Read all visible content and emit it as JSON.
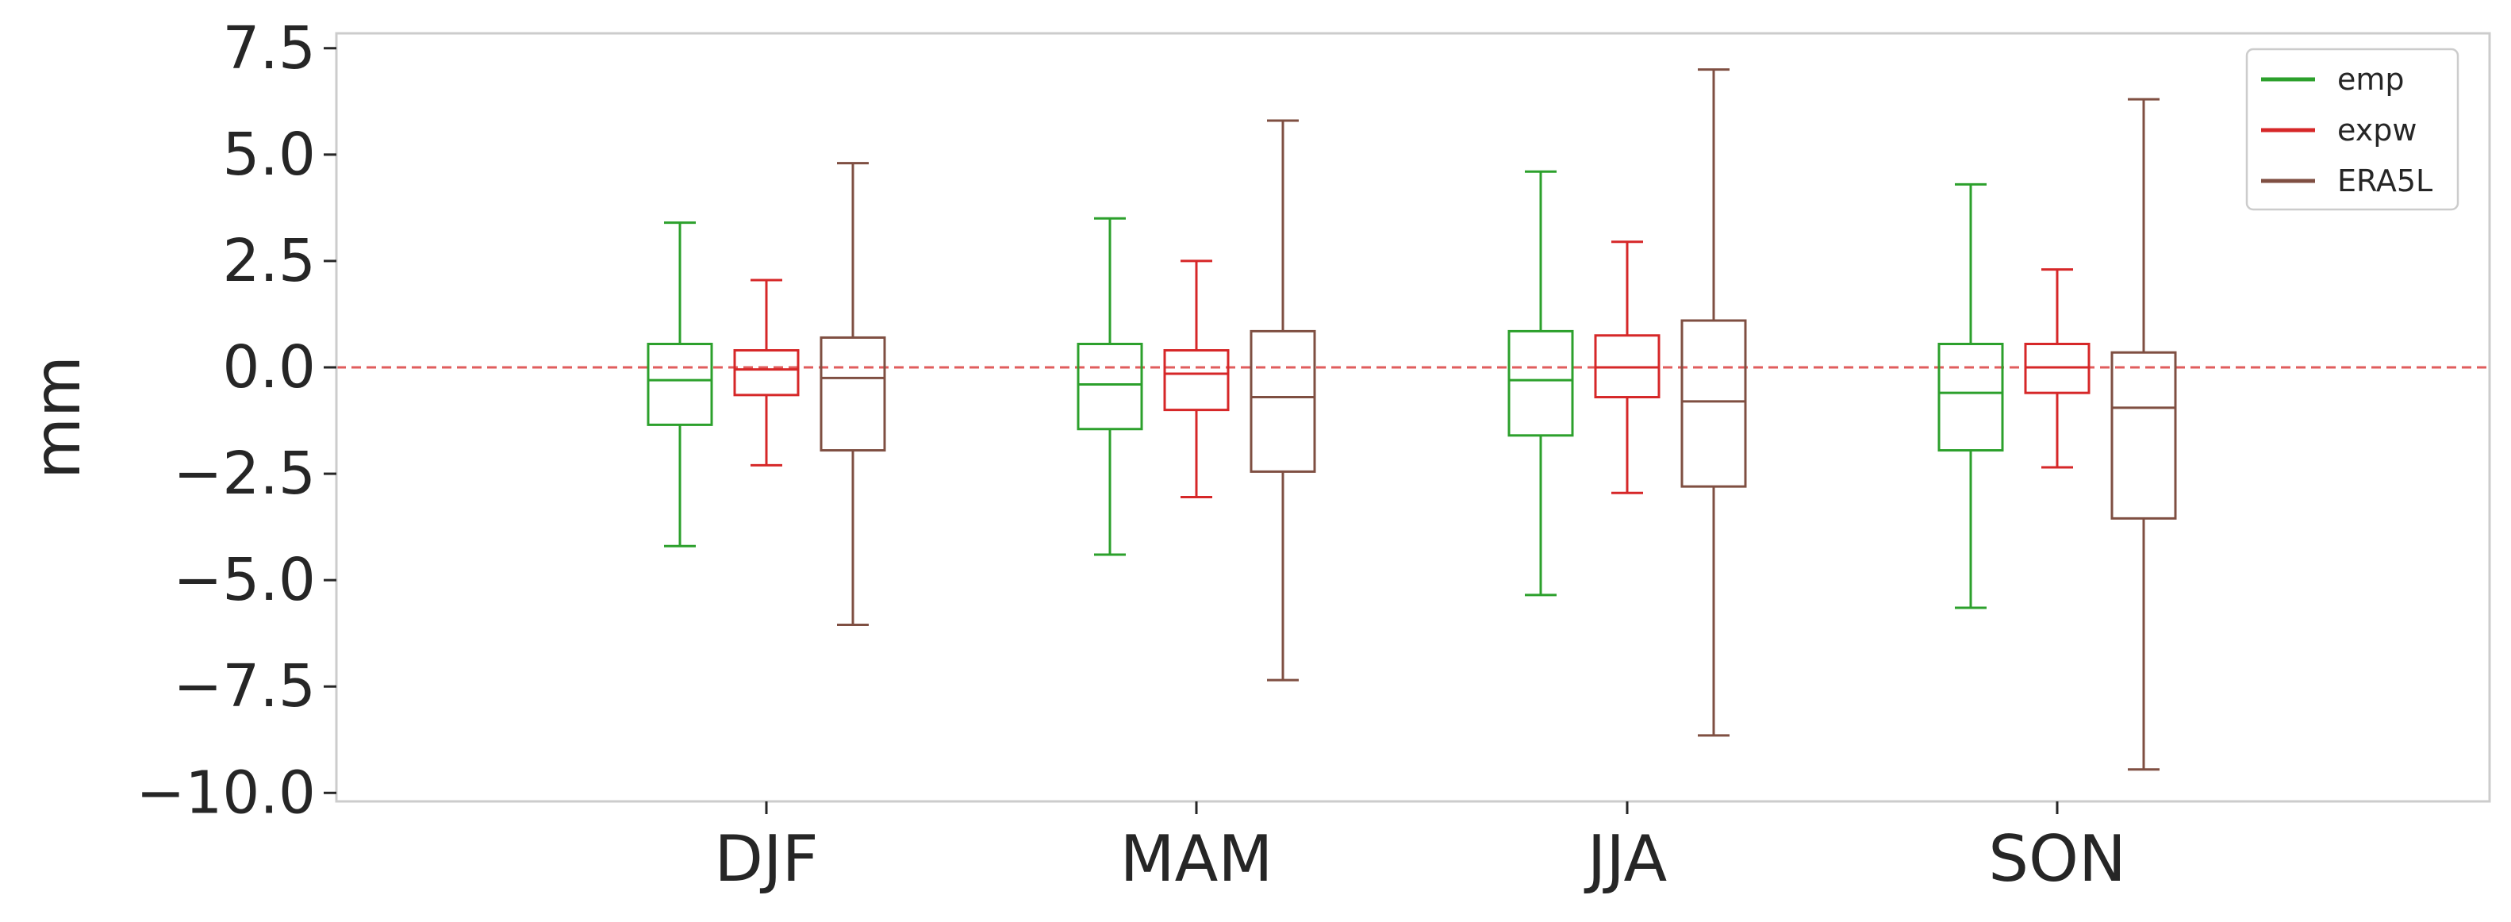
{
  "chart_data": {
    "type": "box",
    "title": "",
    "xlabel": "",
    "ylabel": "mm",
    "ylim": [
      -10.2,
      7.85
    ],
    "yticks": [
      7.5,
      5.0,
      2.5,
      0.0,
      -2.5,
      -5.0,
      -7.5,
      -10.0
    ],
    "ytick_labels": [
      "7.5",
      "5.0",
      "2.5",
      "0.0",
      "−2.5",
      "−5.0",
      "−7.5",
      "−10.0"
    ],
    "categories": [
      "DJF",
      "MAM",
      "JJA",
      "SON"
    ],
    "reference_line": 0.0,
    "legend_position": "top-right",
    "series": [
      {
        "name": "emp",
        "color": "#2ca02c",
        "boxes": [
          {
            "whislo": -4.2,
            "q1": -1.35,
            "med": -0.3,
            "q3": 0.55,
            "whishi": 3.4
          },
          {
            "whislo": -4.4,
            "q1": -1.45,
            "med": -0.4,
            "q3": 0.55,
            "whishi": 3.5
          },
          {
            "whislo": -5.35,
            "q1": -1.6,
            "med": -0.3,
            "q3": 0.85,
            "whishi": 4.6
          },
          {
            "whislo": -5.65,
            "q1": -1.95,
            "med": -0.6,
            "q3": 0.55,
            "whishi": 4.3
          }
        ]
      },
      {
        "name": "expw",
        "color": "#d62728",
        "boxes": [
          {
            "whislo": -2.3,
            "q1": -0.65,
            "med": -0.05,
            "q3": 0.4,
            "whishi": 2.05
          },
          {
            "whislo": -3.05,
            "q1": -1.0,
            "med": -0.15,
            "q3": 0.4,
            "whishi": 2.5
          },
          {
            "whislo": -2.95,
            "q1": -0.7,
            "med": 0.0,
            "q3": 0.75,
            "whishi": 2.95
          },
          {
            "whislo": -2.35,
            "q1": -0.6,
            "med": 0.0,
            "q3": 0.55,
            "whishi": 2.3
          }
        ]
      },
      {
        "name": "ERA5L",
        "color": "#7f4f42",
        "boxes": [
          {
            "whislo": -6.05,
            "q1": -1.95,
            "med": -0.25,
            "q3": 0.7,
            "whishi": 4.8
          },
          {
            "whislo": -7.35,
            "q1": -2.45,
            "med": -0.7,
            "q3": 0.85,
            "whishi": 5.8
          },
          {
            "whislo": -8.65,
            "q1": -2.8,
            "med": -0.8,
            "q3": 1.1,
            "whishi": 7.0
          },
          {
            "whislo": -9.45,
            "q1": -3.55,
            "med": -0.95,
            "q3": 0.35,
            "whishi": 6.3
          }
        ]
      }
    ]
  }
}
